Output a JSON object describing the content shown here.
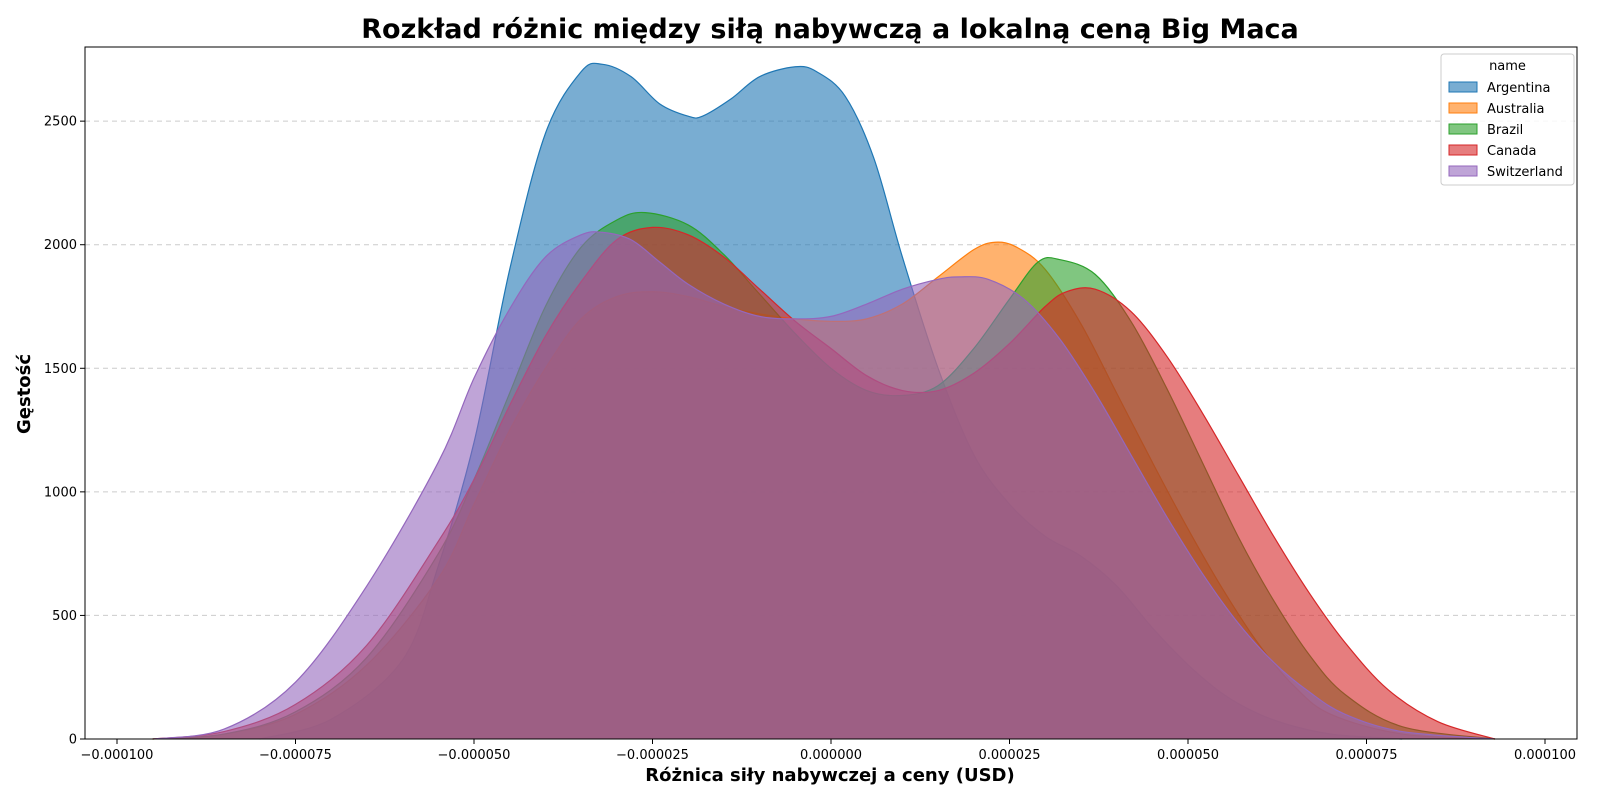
{
  "chart_data": {
    "type": "area",
    "title": "Rozkład różnic między siłą nabywczą a lokalną ceną Big Maca",
    "xlabel": "Różnica siły nabywczej a ceny (USD)",
    "ylabel": "Gęstość",
    "xlim": [
      -0.0001,
      0.0001
    ],
    "ylim": [
      0,
      2800
    ],
    "x_ticks": [
      -0.0001,
      -7.5e-05,
      -5e-05,
      -2.5e-05,
      0.0,
      2.5e-05,
      5e-05,
      7.5e-05,
      0.0001
    ],
    "x_tick_labels": [
      "−0.000100",
      "−0.000075",
      "−0.000050",
      "−0.000025",
      "0.000000",
      "0.000025",
      "0.000050",
      "0.000075",
      "0.000100"
    ],
    "y_ticks": [
      0,
      500,
      1000,
      1500,
      2000,
      2500
    ],
    "y_tick_labels": [
      "0",
      "500",
      "1000",
      "1500",
      "2000",
      "2500"
    ],
    "grid": "y-dashed",
    "legend_title": "name",
    "legend_position": "top-right",
    "fill_opacity": 0.6,
    "series": [
      {
        "name": "Argentina",
        "color": "#1f77b4",
        "x": [
          -8e-05,
          -7e-05,
          -6e-05,
          -5.5e-05,
          -5e-05,
          -4.5e-05,
          -4e-05,
          -3.5e-05,
          -3.2e-05,
          -2.8e-05,
          -2.4e-05,
          -2e-05,
          -1.8e-05,
          -1.4e-05,
          -1e-05,
          -5e-06,
          -2e-06,
          2e-06,
          6e-06,
          1e-05,
          1.5e-05,
          2e-05,
          2.5e-05,
          3e-05,
          3.5e-05,
          4e-05,
          4.5e-05,
          5e-05,
          5.5e-05,
          6e-05,
          6.5e-05,
          7e-05,
          7.5e-05,
          8e-05
        ],
        "values": [
          0,
          80,
          320,
          700,
          1200,
          1900,
          2450,
          2700,
          2730,
          2680,
          2570,
          2520,
          2520,
          2590,
          2680,
          2720,
          2700,
          2600,
          2350,
          1950,
          1500,
          1150,
          950,
          820,
          740,
          620,
          450,
          300,
          180,
          100,
          50,
          20,
          8,
          0
        ]
      },
      {
        "name": "Australia",
        "color": "#ff7f0e",
        "x": [
          -9.5e-05,
          -8.5e-05,
          -7.5e-05,
          -6.5e-05,
          -5.5e-05,
          -5e-05,
          -4.5e-05,
          -4e-05,
          -3.5e-05,
          -3e-05,
          -2.5e-05,
          -2e-05,
          -1.5e-05,
          -1e-05,
          -5e-06,
          0.0,
          5e-06,
          1e-05,
          1.5e-05,
          2e-05,
          2.3e-05,
          2.6e-05,
          3e-05,
          3.5e-05,
          4e-05,
          4.5e-05,
          5e-05,
          5.5e-05,
          6e-05,
          6.5e-05,
          7e-05,
          8e-05,
          9.3e-05
        ],
        "values": [
          0,
          20,
          100,
          300,
          650,
          950,
          1250,
          1500,
          1700,
          1790,
          1810,
          1790,
          1750,
          1720,
          1700,
          1690,
          1700,
          1760,
          1870,
          1980,
          2010,
          1990,
          1900,
          1680,
          1400,
          1120,
          850,
          600,
          380,
          210,
          100,
          20,
          0
        ]
      },
      {
        "name": "Brazil",
        "color": "#2ca02c",
        "x": [
          -9.5e-05,
          -8.5e-05,
          -7.5e-05,
          -6.5e-05,
          -5.5e-05,
          -5e-05,
          -4.5e-05,
          -4e-05,
          -3.5e-05,
          -3e-05,
          -2.6e-05,
          -2e-05,
          -1.5e-05,
          -1e-05,
          -5e-06,
          0.0,
          5e-06,
          1e-05,
          1.5e-05,
          2e-05,
          2.5e-05,
          2.9e-05,
          3.2e-05,
          3.7e-05,
          4.2e-05,
          4.7e-05,
          5.2e-05,
          5.7e-05,
          6.2e-05,
          6.7e-05,
          7.2e-05,
          8e-05,
          9.3e-05
        ],
        "values": [
          0,
          20,
          110,
          330,
          750,
          1050,
          1400,
          1750,
          1990,
          2100,
          2130,
          2080,
          1960,
          1800,
          1640,
          1500,
          1410,
          1390,
          1430,
          1580,
          1780,
          1930,
          1940,
          1880,
          1690,
          1420,
          1120,
          820,
          560,
          340,
          180,
          50,
          0
        ]
      },
      {
        "name": "Canada",
        "color": "#d62728",
        "x": [
          -9.5e-05,
          -8.5e-05,
          -7.5e-05,
          -6.5e-05,
          -5.5e-05,
          -5e-05,
          -4.5e-05,
          -4e-05,
          -3.5e-05,
          -3e-05,
          -2.5e-05,
          -2e-05,
          -1.5e-05,
          -1e-05,
          -5e-06,
          0.0,
          5e-06,
          1e-05,
          1.5e-05,
          2e-05,
          2.5e-05,
          3e-05,
          3.3e-05,
          3.7e-05,
          4.2e-05,
          4.7e-05,
          5.2e-05,
          5.7e-05,
          6.2e-05,
          6.7e-05,
          7.2e-05,
          7.8e-05,
          8.5e-05,
          9.3e-05
        ],
        "values": [
          0,
          30,
          140,
          380,
          800,
          1050,
          1350,
          1630,
          1850,
          2020,
          2070,
          2040,
          1950,
          1820,
          1690,
          1580,
          1470,
          1410,
          1410,
          1480,
          1600,
          1750,
          1810,
          1820,
          1730,
          1550,
          1320,
          1070,
          820,
          590,
          390,
          200,
          70,
          0
        ]
      },
      {
        "name": "Switzerland",
        "color": "#9467bd",
        "x": [
          -9.5e-05,
          -8.5e-05,
          -7.5e-05,
          -6.5e-05,
          -5.5e-05,
          -5e-05,
          -4.5e-05,
          -4e-05,
          -3.5e-05,
          -3.2e-05,
          -2.8e-05,
          -2.4e-05,
          -2e-05,
          -1.5e-05,
          -1e-05,
          -5e-06,
          0.0,
          5e-06,
          1e-05,
          1.5e-05,
          1.8e-05,
          2.2e-05,
          2.7e-05,
          3.2e-05,
          3.7e-05,
          4.2e-05,
          4.7e-05,
          5.2e-05,
          5.7e-05,
          6.2e-05,
          6.7e-05,
          7.2e-05,
          8e-05,
          9.3e-05
        ],
        "values": [
          0,
          40,
          230,
          620,
          1120,
          1460,
          1740,
          1950,
          2040,
          2050,
          2020,
          1930,
          1840,
          1760,
          1710,
          1700,
          1710,
          1760,
          1820,
          1860,
          1870,
          1860,
          1780,
          1620,
          1400,
          1150,
          900,
          670,
          470,
          310,
          190,
          100,
          30,
          0
        ]
      }
    ]
  }
}
